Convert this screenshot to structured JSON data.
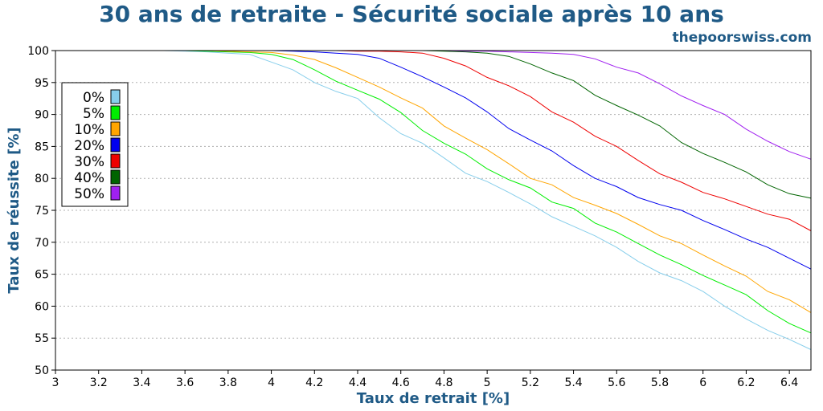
{
  "chart_data": {
    "type": "line",
    "title": "30 ans de retraite - Sécurité sociale après 10 ans",
    "subtitle": "thepoorswiss.com",
    "xlabel": "Taux de retrait [%]",
    "ylabel": "Taux de réussite [%]",
    "xlim": [
      3,
      6.5
    ],
    "ylim": [
      50,
      100
    ],
    "xticks": [
      "3",
      "3.2",
      "3.4",
      "3.6",
      "3.8",
      "4",
      "4.2",
      "4.4",
      "4.6",
      "4.8",
      "5",
      "5.2",
      "5.4",
      "5.6",
      "5.8",
      "6",
      "6.2",
      "6.4"
    ],
    "yticks": [
      "50",
      "55",
      "60",
      "65",
      "70",
      "75",
      "80",
      "85",
      "90",
      "95",
      "100"
    ],
    "grid": "horizontal dotted",
    "legend_position": "upper-left",
    "x": [
      3.0,
      3.1,
      3.2,
      3.3,
      3.4,
      3.5,
      3.6,
      3.7,
      3.8,
      3.9,
      4.0,
      4.1,
      4.2,
      4.3,
      4.4,
      4.5,
      4.6,
      4.7,
      4.8,
      4.9,
      5.0,
      5.1,
      5.2,
      5.3,
      5.4,
      5.5,
      5.6,
      5.7,
      5.8,
      5.9,
      6.0,
      6.1,
      6.2,
      6.3,
      6.4,
      6.5
    ],
    "series": [
      {
        "name": "0%",
        "color": "#87ceeb",
        "values": [
          100,
          100,
          100,
          100,
          100,
          100,
          99.9,
          99.8,
          99.6,
          99.4,
          98.2,
          97.0,
          95.0,
          93.6,
          92.5,
          89.5,
          87.0,
          85.5,
          83.2,
          80.8,
          79.5,
          77.8,
          76.0,
          74.0,
          72.5,
          71.0,
          69.2,
          67.0,
          65.2,
          64.0,
          62.3,
          60.0,
          58.0,
          56.2,
          54.8,
          53.2
        ]
      },
      {
        "name": "5%",
        "color": "#00ee00",
        "values": [
          100,
          100,
          100,
          100,
          100,
          100,
          100,
          99.9,
          99.8,
          99.7,
          99.4,
          98.6,
          97.0,
          95.2,
          93.8,
          92.4,
          90.3,
          87.5,
          85.5,
          83.8,
          81.5,
          79.8,
          78.5,
          76.3,
          75.3,
          73.0,
          71.6,
          69.8,
          68.0,
          66.5,
          64.8,
          63.3,
          61.8,
          59.3,
          57.3,
          55.8
        ]
      },
      {
        "name": "10%",
        "color": "#ffa500",
        "values": [
          100,
          100,
          100,
          100,
          100,
          100,
          100,
          100,
          99.9,
          99.8,
          99.7,
          99.3,
          98.6,
          97.3,
          95.8,
          94.3,
          92.6,
          91.0,
          88.2,
          86.3,
          84.5,
          82.3,
          80.0,
          79.0,
          77.0,
          75.8,
          74.5,
          72.8,
          71.0,
          69.8,
          68.0,
          66.3,
          64.7,
          62.3,
          61.0,
          59.0
        ]
      },
      {
        "name": "20%",
        "color": "#0000ee",
        "values": [
          100,
          100,
          100,
          100,
          100,
          100,
          100,
          100,
          100,
          100,
          100,
          99.9,
          99.8,
          99.6,
          99.4,
          98.8,
          97.4,
          95.9,
          94.3,
          92.6,
          90.4,
          87.8,
          86.0,
          84.3,
          82.0,
          80.0,
          78.7,
          77.0,
          75.9,
          75.0,
          73.4,
          72.0,
          70.5,
          69.2,
          67.5,
          65.8
        ]
      },
      {
        "name": "30%",
        "color": "#ee0000",
        "values": [
          100,
          100,
          100,
          100,
          100,
          100,
          100,
          100,
          100,
          100,
          100,
          100,
          100,
          100,
          99.9,
          99.9,
          99.8,
          99.6,
          98.8,
          97.6,
          95.8,
          94.5,
          92.8,
          90.4,
          88.8,
          86.6,
          85.0,
          82.8,
          80.7,
          79.4,
          77.8,
          76.8,
          75.6,
          74.4,
          73.6,
          71.8
        ]
      },
      {
        "name": "40%",
        "color": "#006400",
        "values": [
          100,
          100,
          100,
          100,
          100,
          100,
          100,
          100,
          100,
          100,
          100,
          100,
          100,
          100,
          100,
          100,
          100,
          100,
          99.9,
          99.8,
          99.6,
          99.1,
          97.9,
          96.5,
          95.3,
          93.0,
          91.4,
          89.9,
          88.2,
          85.6,
          83.9,
          82.5,
          81.0,
          79.0,
          77.6,
          76.9
        ]
      },
      {
        "name": "50%",
        "color": "#a020f0",
        "values": [
          100,
          100,
          100,
          100,
          100,
          100,
          100,
          100,
          100,
          100,
          100,
          100,
          100,
          100,
          100,
          100,
          100,
          100,
          100,
          99.9,
          99.9,
          99.8,
          99.7,
          99.6,
          99.4,
          98.7,
          97.4,
          96.5,
          94.8,
          92.9,
          91.4,
          90.0,
          87.7,
          85.8,
          84.2,
          83.0
        ]
      }
    ]
  }
}
